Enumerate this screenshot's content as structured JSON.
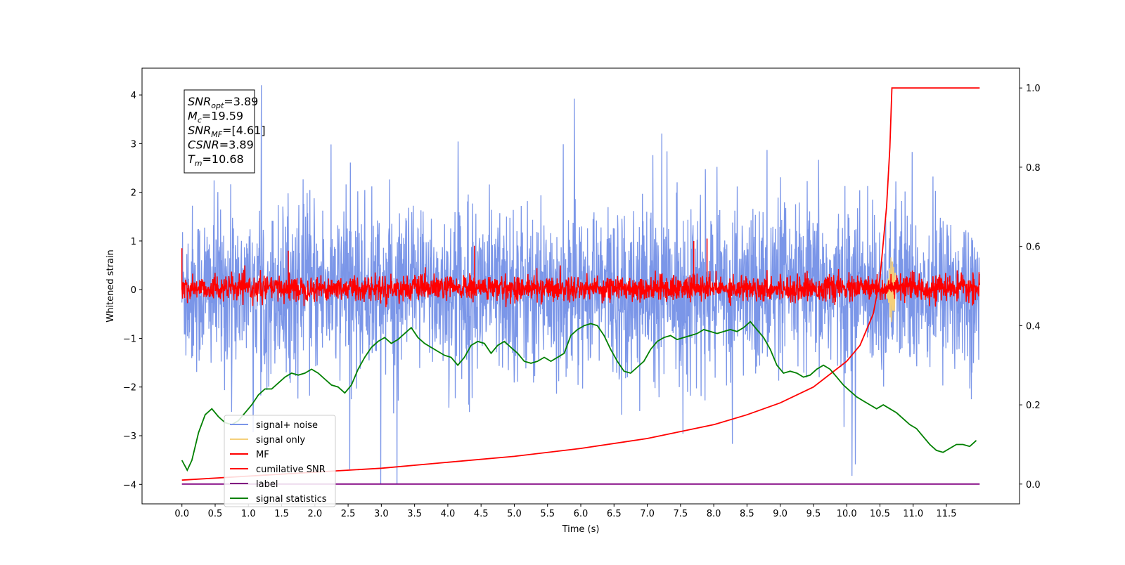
{
  "chart_data": {
    "type": "line",
    "xlabel": "Time (s)",
    "ylabel": "Whitened strain",
    "xlim": [
      -0.6,
      12.6
    ],
    "ylim": [
      -4.4,
      4.55
    ],
    "y2lim": [
      -0.05,
      1.05
    ],
    "x_ticks": [
      "0.0",
      "0.5",
      "1.0",
      "1.5",
      "2.0",
      "2.5",
      "3.0",
      "3.5",
      "4.0",
      "4.5",
      "5.0",
      "5.5",
      "6.0",
      "6.5",
      "7.0",
      "7.5",
      "8.0",
      "8.5",
      "9.0",
      "9.5",
      "10.0",
      "10.5",
      "11.0",
      "11.5"
    ],
    "y_ticks": [
      "4",
      "3",
      "2",
      "1",
      "0",
      "−1",
      "−2",
      "−3",
      "−4"
    ],
    "y2_ticks": [
      "1.0",
      "0.8",
      "0.6",
      "0.4",
      "0.2",
      "0.0"
    ],
    "grid": false,
    "legend_position": "lower-left",
    "legend": [
      {
        "label": "signal+ noise",
        "color": "#7b96e8"
      },
      {
        "label": "signal only",
        "color": "#f5d07a"
      },
      {
        "label": "MF",
        "color": "#ff0000"
      },
      {
        "label": "cumilative SNR",
        "color": "#ff0000"
      },
      {
        "label": "label",
        "color": "#800080"
      },
      {
        "label": "signal statistics",
        "color": "#008000"
      }
    ],
    "annotation": [
      {
        "sym": "SNR",
        "sub": "opt",
        "value": "=3.89"
      },
      {
        "sym": "M",
        "sub": "c",
        "value": "=19.59"
      },
      {
        "sym": "SNR",
        "sub": "MF",
        "value": "=[4.61]"
      },
      {
        "sym": "CSNR",
        "sub": "",
        "value": "=3.89"
      },
      {
        "sym": "T",
        "sub": "m",
        "value": "=10.68"
      }
    ],
    "series": [
      {
        "name": "signal+ noise",
        "axis": "left",
        "color": "#7b96e8",
        "style": "dense noise",
        "x_range": [
          0,
          12
        ],
        "amplitude_typical": [
          -2.0,
          2.2
        ],
        "approx_extremes": [
          -4.0,
          4.2
        ]
      },
      {
        "name": "signal only",
        "axis": "left",
        "color": "#f5d07a",
        "style": "chirp burst",
        "peak_time": 10.68,
        "amplitude": 0.7
      },
      {
        "name": "MF",
        "axis": "left",
        "color": "#ff0000",
        "style": "dense noise",
        "x_range": [
          0,
          12
        ],
        "amplitude_typical": [
          -0.35,
          0.45
        ],
        "spike_at": [
          [
            0.0,
            0.85
          ],
          [
            1.6,
            0.8
          ],
          [
            4.4,
            0.9
          ],
          [
            7.7,
            1.0
          ],
          [
            7.9,
            1.05
          ]
        ]
      },
      {
        "name": "cumilative SNR",
        "axis": "right",
        "color": "#ff0000",
        "style": "curve",
        "x": [
          0.0,
          1.0,
          2.0,
          3.0,
          4.0,
          5.0,
          6.0,
          7.0,
          8.0,
          8.5,
          9.0,
          9.5,
          10.0,
          10.2,
          10.4,
          10.5,
          10.6,
          10.65,
          10.68,
          12.0
        ],
        "y": [
          0.01,
          0.02,
          0.03,
          0.04,
          0.055,
          0.07,
          0.09,
          0.115,
          0.15,
          0.175,
          0.205,
          0.245,
          0.31,
          0.35,
          0.43,
          0.52,
          0.7,
          0.85,
          1.0,
          1.0
        ]
      },
      {
        "name": "label",
        "axis": "right",
        "color": "#800080",
        "style": "line",
        "x": [
          0.0,
          12.0
        ],
        "y": [
          0.0,
          0.0
        ]
      },
      {
        "name": "signal statistics",
        "axis": "right",
        "color": "#008000",
        "style": "line",
        "x": [
          0.0,
          0.08,
          0.15,
          0.25,
          0.35,
          0.45,
          0.55,
          0.65,
          0.75,
          0.85,
          0.95,
          1.05,
          1.15,
          1.25,
          1.35,
          1.45,
          1.55,
          1.65,
          1.75,
          1.85,
          1.95,
          2.05,
          2.15,
          2.25,
          2.35,
          2.45,
          2.55,
          2.65,
          2.75,
          2.85,
          2.95,
          3.05,
          3.15,
          3.25,
          3.35,
          3.45,
          3.55,
          3.65,
          3.75,
          3.85,
          3.95,
          4.05,
          4.15,
          4.25,
          4.35,
          4.45,
          4.55,
          4.65,
          4.75,
          4.85,
          4.95,
          5.05,
          5.15,
          5.25,
          5.35,
          5.45,
          5.55,
          5.65,
          5.75,
          5.85,
          5.95,
          6.05,
          6.15,
          6.25,
          6.35,
          6.45,
          6.55,
          6.65,
          6.75,
          6.85,
          6.95,
          7.05,
          7.15,
          7.25,
          7.35,
          7.45,
          7.55,
          7.65,
          7.75,
          7.85,
          7.95,
          8.05,
          8.15,
          8.25,
          8.35,
          8.45,
          8.55,
          8.65,
          8.75,
          8.85,
          8.95,
          9.05,
          9.15,
          9.25,
          9.35,
          9.45,
          9.55,
          9.65,
          9.75,
          9.85,
          9.95,
          10.05,
          10.15,
          10.25,
          10.35,
          10.45,
          10.55,
          10.65,
          10.75,
          10.85,
          10.95,
          11.05,
          11.15,
          11.25,
          11.35,
          11.45,
          11.55,
          11.65,
          11.75,
          11.85,
          11.95
        ],
        "y": [
          0.06,
          0.035,
          0.06,
          0.13,
          0.175,
          0.19,
          0.17,
          0.155,
          0.15,
          0.16,
          0.18,
          0.2,
          0.225,
          0.24,
          0.24,
          0.255,
          0.27,
          0.28,
          0.275,
          0.28,
          0.29,
          0.28,
          0.265,
          0.25,
          0.245,
          0.23,
          0.25,
          0.29,
          0.32,
          0.345,
          0.36,
          0.37,
          0.355,
          0.365,
          0.38,
          0.395,
          0.37,
          0.355,
          0.345,
          0.335,
          0.325,
          0.32,
          0.3,
          0.32,
          0.35,
          0.36,
          0.355,
          0.33,
          0.35,
          0.36,
          0.345,
          0.33,
          0.31,
          0.305,
          0.31,
          0.32,
          0.31,
          0.32,
          0.33,
          0.375,
          0.39,
          0.4,
          0.405,
          0.4,
          0.375,
          0.34,
          0.31,
          0.285,
          0.28,
          0.295,
          0.31,
          0.34,
          0.36,
          0.37,
          0.375,
          0.365,
          0.37,
          0.375,
          0.38,
          0.39,
          0.385,
          0.38,
          0.385,
          0.39,
          0.385,
          0.395,
          0.41,
          0.39,
          0.37,
          0.34,
          0.3,
          0.28,
          0.285,
          0.28,
          0.27,
          0.275,
          0.29,
          0.3,
          0.29,
          0.27,
          0.25,
          0.235,
          0.22,
          0.21,
          0.2,
          0.19,
          0.2,
          0.19,
          0.18,
          0.165,
          0.15,
          0.14,
          0.12,
          0.1,
          0.085,
          0.08,
          0.09,
          0.1,
          0.1,
          0.095,
          0.11
        ]
      }
    ]
  }
}
